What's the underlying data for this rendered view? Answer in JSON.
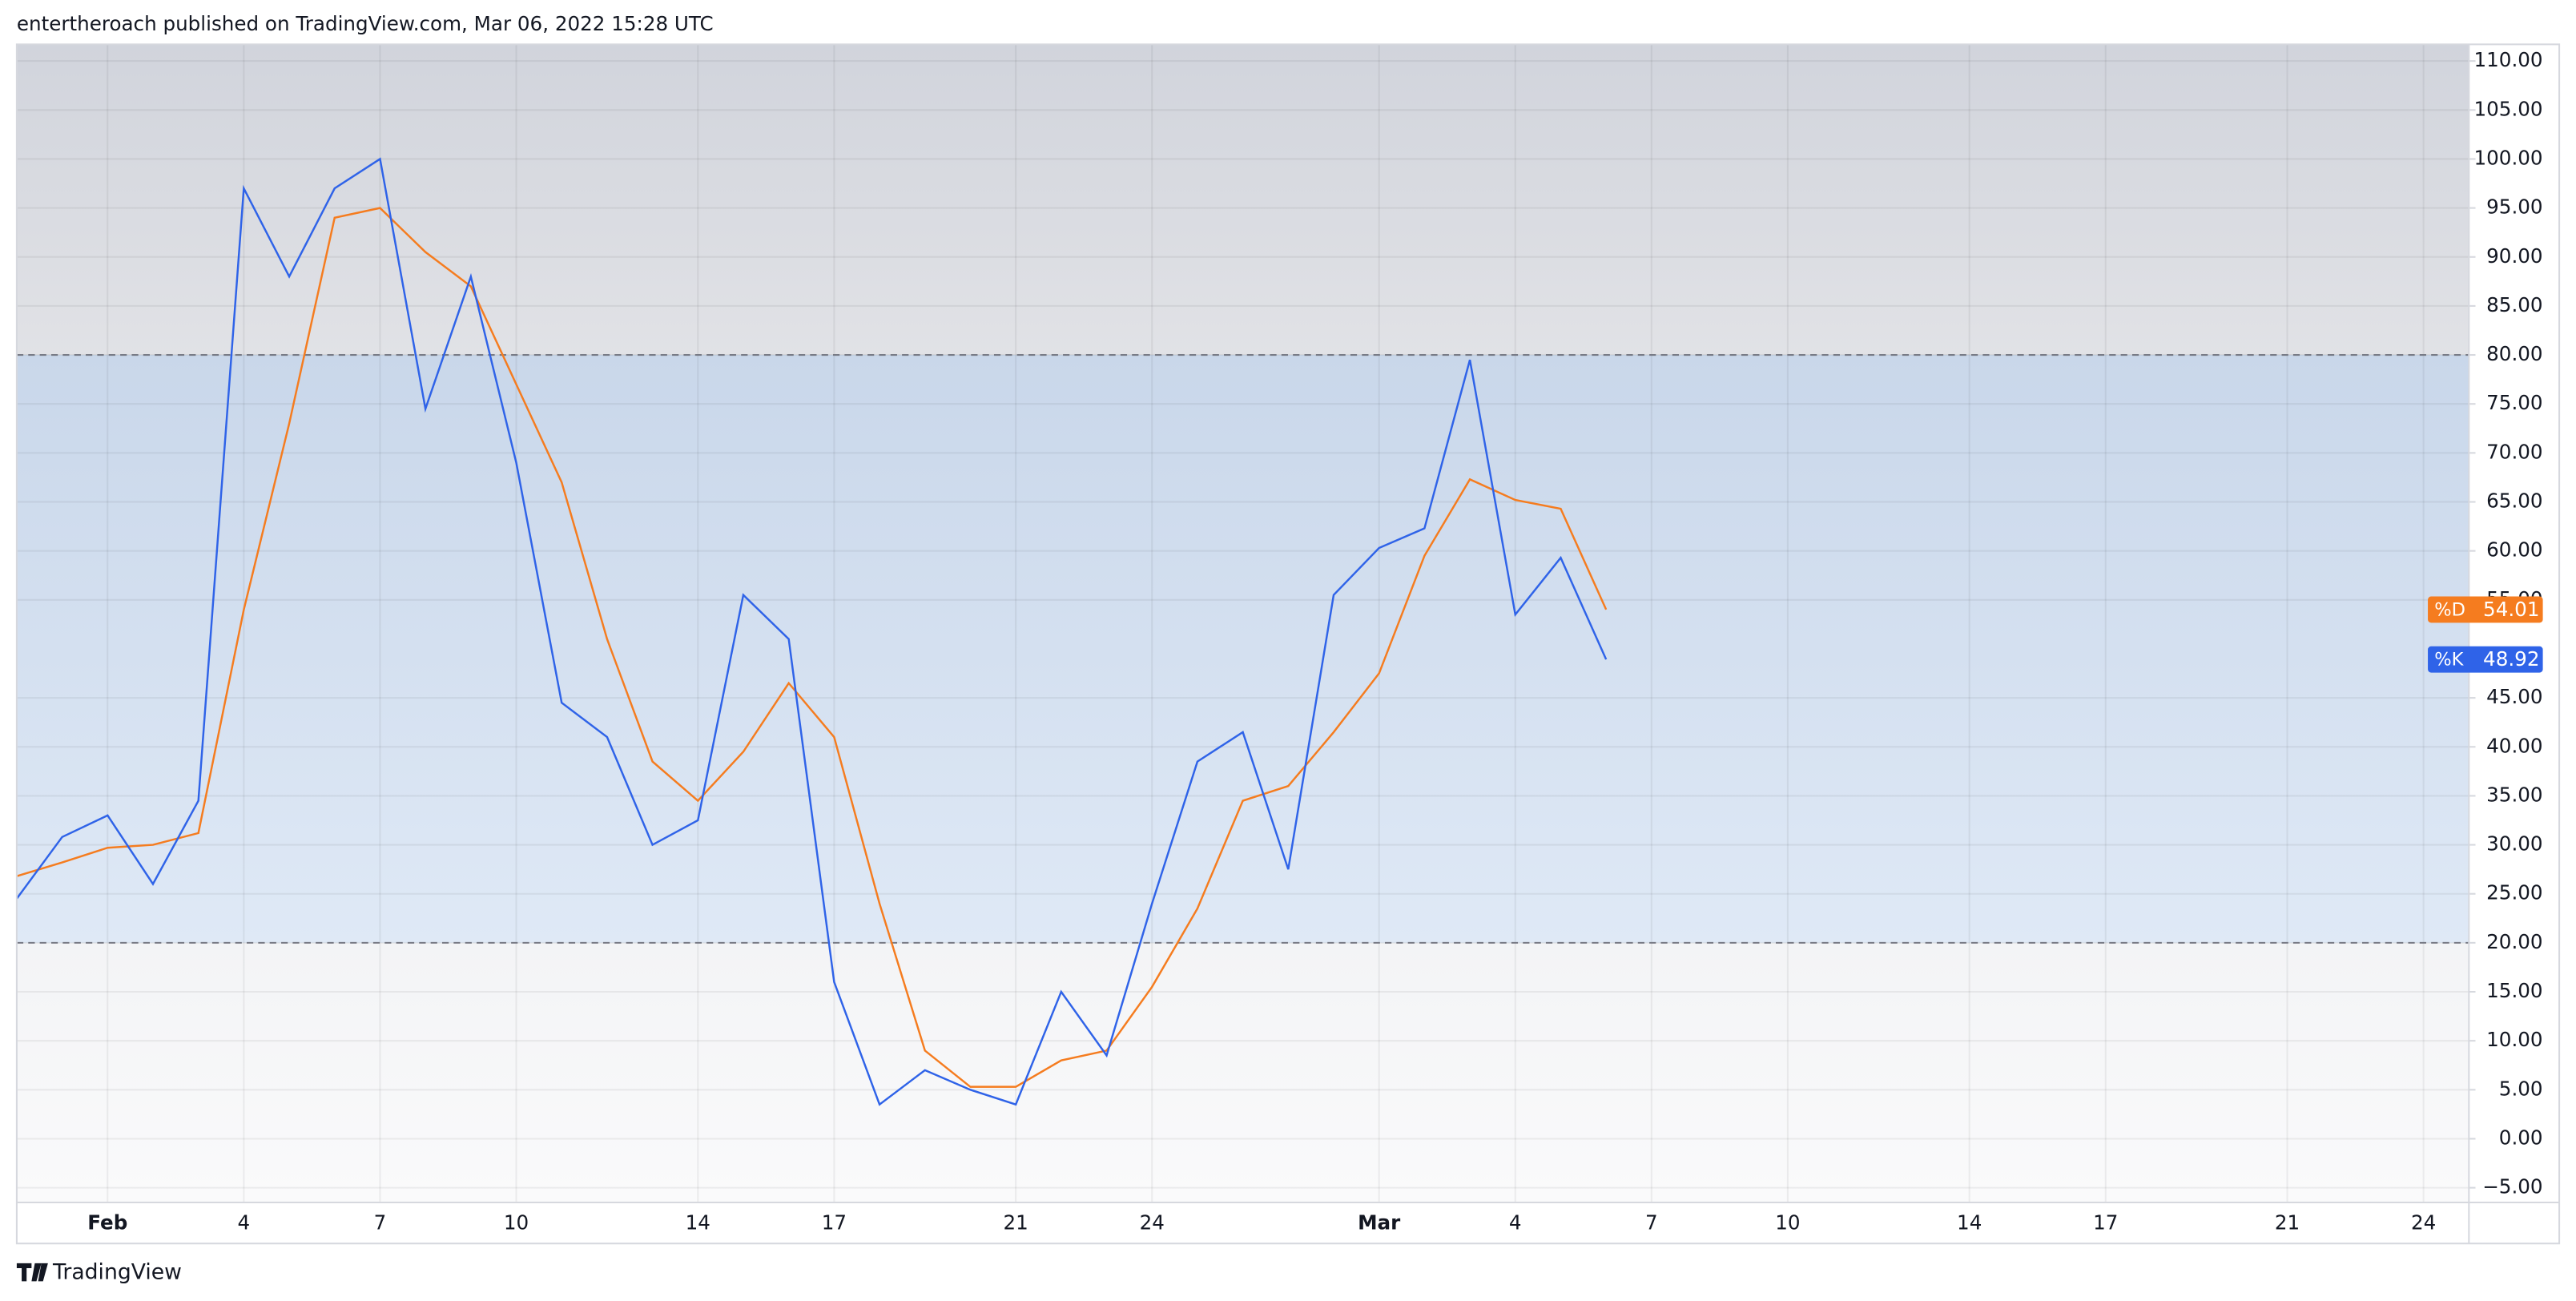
{
  "header": {
    "text": "entertheroach published on TradingView.com, Mar 06, 2022 15:28 UTC"
  },
  "footer": {
    "brand": "TradingView"
  },
  "chart_data": {
    "type": "line",
    "x": [
      "01-30",
      "01-31",
      "02-01",
      "02-02",
      "02-03",
      "02-04",
      "02-05",
      "02-06",
      "02-07",
      "02-08",
      "02-09",
      "02-10",
      "02-11",
      "02-12",
      "02-13",
      "02-14",
      "02-15",
      "02-16",
      "02-17",
      "02-18",
      "02-19",
      "02-20",
      "02-21",
      "02-22",
      "02-23",
      "02-24",
      "02-25",
      "02-26",
      "02-27",
      "02-28",
      "03-01",
      "03-02",
      "03-03",
      "03-04",
      "03-05",
      "03-06"
    ],
    "series": [
      {
        "name": "%K",
        "color": "#2f63e8",
        "values": [
          24.5,
          30.8,
          33,
          26,
          34.5,
          97,
          88,
          97,
          100,
          74.5,
          88,
          69,
          44.5,
          41,
          30,
          32.5,
          55.5,
          51,
          16,
          3.5,
          7,
          5,
          3.5,
          15,
          8.5,
          24,
          38.5,
          41.5,
          27.5,
          55.5,
          60.3,
          62.3,
          79.5,
          53.5,
          59.3,
          48.92
        ]
      },
      {
        "name": "%D",
        "color": "#f57c1f",
        "values": [
          26.8,
          28.2,
          29.7,
          30,
          31.2,
          54,
          73,
          94,
          95,
          90.5,
          87,
          77,
          67,
          51,
          38.5,
          34.5,
          39.5,
          46.5,
          41,
          24,
          9,
          5.3,
          5.3,
          8,
          9,
          15.5,
          23.5,
          34.5,
          36,
          41.5,
          47.5,
          59.5,
          67.3,
          65.2,
          64.3,
          54.01
        ]
      }
    ],
    "xlim": [
      "01-30",
      "03-25"
    ],
    "xticks": [
      {
        "value": "02-01",
        "label": "Feb"
      },
      {
        "value": "02-04",
        "label": "4"
      },
      {
        "value": "02-07",
        "label": "7"
      },
      {
        "value": "02-10",
        "label": "10"
      },
      {
        "value": "02-14",
        "label": "14"
      },
      {
        "value": "02-17",
        "label": "17"
      },
      {
        "value": "02-21",
        "label": "21"
      },
      {
        "value": "02-24",
        "label": "24"
      },
      {
        "value": "03-01",
        "label": "Mar"
      },
      {
        "value": "03-04",
        "label": "4"
      },
      {
        "value": "03-07",
        "label": "7"
      },
      {
        "value": "03-10",
        "label": "10"
      },
      {
        "value": "03-14",
        "label": "14"
      },
      {
        "value": "03-17",
        "label": "17"
      },
      {
        "value": "03-21",
        "label": "21"
      },
      {
        "value": "03-24",
        "label": "24"
      }
    ],
    "ylim": [
      -6.5,
      111.7
    ],
    "yticks": [
      {
        "value": -5,
        "label": "−5.00"
      },
      {
        "value": 0,
        "label": "0.00"
      },
      {
        "value": 5,
        "label": "5.00"
      },
      {
        "value": 10,
        "label": "10.00"
      },
      {
        "value": 15,
        "label": "15.00"
      },
      {
        "value": 20,
        "label": "20.00"
      },
      {
        "value": 25,
        "label": "25.00"
      },
      {
        "value": 30,
        "label": "30.00"
      },
      {
        "value": 35,
        "label": "35.00"
      },
      {
        "value": 40,
        "label": "40.00"
      },
      {
        "value": 45,
        "label": "45.00"
      },
      {
        "value": 55,
        "label": "55.00"
      },
      {
        "value": 60,
        "label": "60.00"
      },
      {
        "value": 65,
        "label": "65.00"
      },
      {
        "value": 70,
        "label": "70.00"
      },
      {
        "value": 75,
        "label": "75.00"
      },
      {
        "value": 80,
        "label": "80.00"
      },
      {
        "value": 85,
        "label": "85.00"
      },
      {
        "value": 90,
        "label": "90.00"
      },
      {
        "value": 95,
        "label": "95.00"
      },
      {
        "value": 100,
        "label": "100.00"
      },
      {
        "value": 105,
        "label": "105.00"
      },
      {
        "value": 110,
        "label": "110.00"
      }
    ],
    "bands": [
      80,
      20
    ],
    "grid": true
  }
}
